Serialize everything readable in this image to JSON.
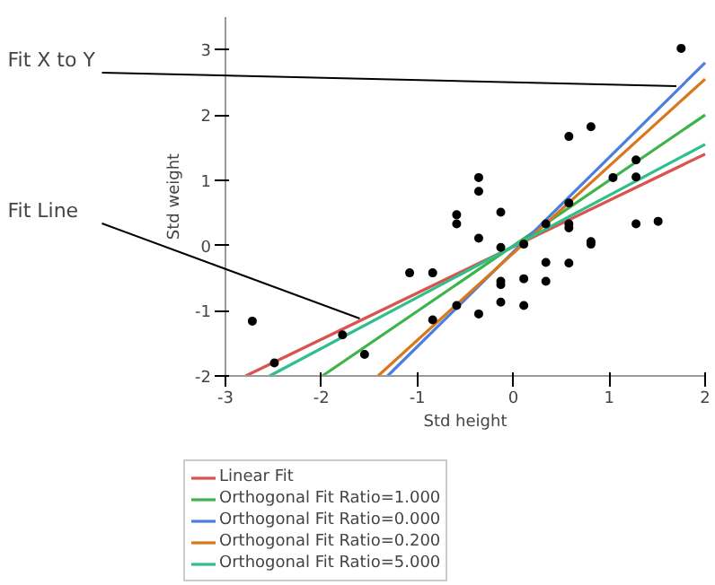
{
  "chart_data": {
    "type": "scatter",
    "xlabel": "Std height",
    "ylabel": "Std weight",
    "xlim": [
      -3,
      2
    ],
    "ylim": [
      -2,
      3.5
    ],
    "xticks": [
      -3,
      -2,
      -1,
      0,
      1,
      2
    ],
    "yticks": [
      -2,
      -1,
      0,
      1,
      2,
      3
    ],
    "grid": false,
    "legend": "bottom",
    "annotations": [
      {
        "text": "Fit X to Y",
        "x": 1.7,
        "y": 2.44
      },
      {
        "text": "Fit Line",
        "x": -1.6,
        "y": -1.12
      }
    ],
    "series": [
      {
        "color": "#000000",
        "marker": "circle",
        "x": [
          -2.72,
          -2.49,
          -1.78,
          -1.55,
          -1.08,
          -0.84,
          -0.84,
          -0.59,
          -0.59,
          -0.59,
          -0.36,
          -0.36,
          -0.36,
          -0.36,
          -0.13,
          -0.13,
          -0.13,
          -0.13,
          -0.13,
          0.11,
          0.11,
          0.11,
          0.34,
          0.34,
          0.34,
          0.58,
          0.58,
          0.58,
          0.58,
          0.58,
          0.81,
          0.81,
          0.81,
          1.04,
          1.28,
          1.28,
          1.28,
          1.51,
          1.75
        ],
        "values": [
          -1.16,
          -1.8,
          -1.37,
          -1.67,
          -0.42,
          -0.42,
          -1.14,
          0.47,
          0.33,
          -0.92,
          1.04,
          0.83,
          0.11,
          -1.05,
          0.51,
          -0.03,
          -0.55,
          -0.6,
          -0.87,
          0.02,
          -0.51,
          -0.92,
          0.33,
          -0.26,
          -0.55,
          1.67,
          0.65,
          0.33,
          0.27,
          -0.27,
          1.82,
          0.06,
          0.02,
          1.04,
          1.31,
          1.05,
          0.33,
          0.37,
          3.02
        ]
      },
      {
        "type": "line",
        "name": "Linear Fit",
        "color": "#d9534f",
        "x": [
          -2.79,
          2
        ],
        "values": [
          -2,
          1.4
        ]
      },
      {
        "type": "line",
        "name": "Orthogonal Fit Ratio=1.000",
        "color": "#3cb44b",
        "x": [
          -1.99,
          2
        ],
        "values": [
          -2,
          2.0
        ]
      },
      {
        "type": "line",
        "name": "Orthogonal Fit Ratio=0.000",
        "color": "#4a7fe0",
        "x": [
          -1.31,
          2
        ],
        "values": [
          -2,
          2.8
        ]
      },
      {
        "type": "line",
        "name": "Orthogonal Fit Ratio=0.200",
        "color": "#d9781a",
        "x": [
          -1.41,
          2
        ],
        "values": [
          -2,
          2.55
        ]
      },
      {
        "type": "line",
        "name": "Orthogonal Fit Ratio=5.000",
        "color": "#2ebf8a",
        "x": [
          -2.54,
          2
        ],
        "values": [
          -2,
          1.55
        ]
      }
    ]
  }
}
